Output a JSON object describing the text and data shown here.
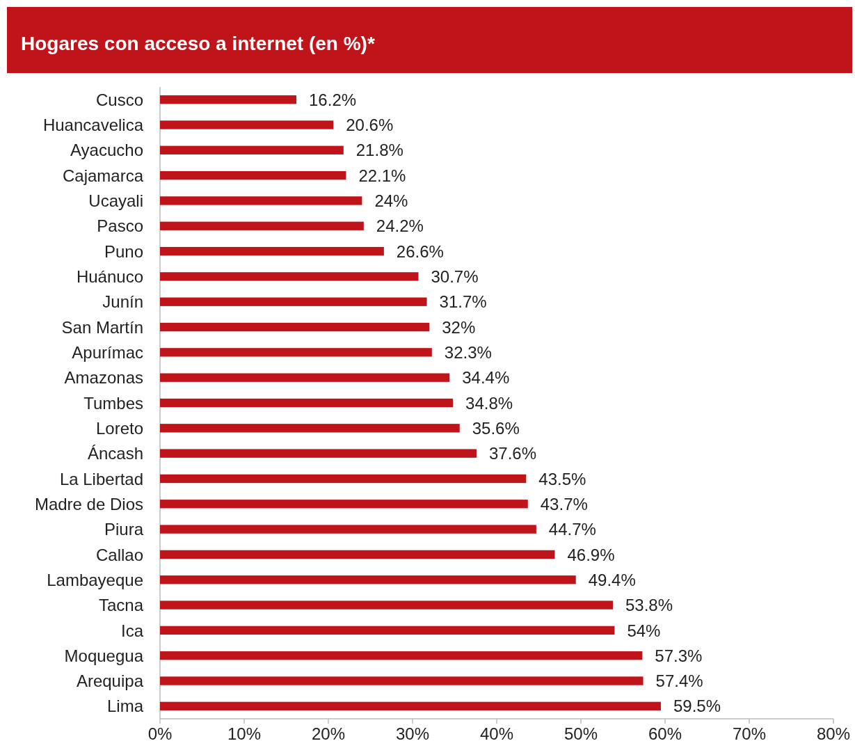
{
  "chart_data": {
    "type": "bar",
    "orientation": "horizontal",
    "title": "Hogares con acceso a internet (en %)*",
    "categories": [
      "Cusco",
      "Huancavelica",
      "Ayacucho",
      "Cajamarca",
      "Ucayali",
      "Pasco",
      "Puno",
      "Huánuco",
      "Junín",
      "San Martín",
      "Apurímac",
      "Amazonas",
      "Tumbes",
      "Loreto",
      "Áncash",
      "La Libertad",
      "Madre de Dios",
      "Piura",
      "Callao",
      "Lambayeque",
      "Tacna",
      "Ica",
      "Moquegua",
      "Arequipa",
      "Lima"
    ],
    "values": [
      16.2,
      20.6,
      21.8,
      22.1,
      24,
      24.2,
      26.6,
      30.7,
      31.7,
      32,
      32.3,
      34.4,
      34.8,
      35.6,
      37.6,
      43.5,
      43.7,
      44.7,
      46.9,
      49.4,
      53.8,
      54,
      57.3,
      57.4,
      59.5
    ],
    "color": "#c0141b",
    "xlim": [
      0,
      80
    ],
    "xticks": [
      {
        "value": 0,
        "label": "0%"
      },
      {
        "value": 10,
        "label": "10%"
      },
      {
        "value": 20,
        "label": "20%"
      },
      {
        "value": 30,
        "label": "30%"
      },
      {
        "value": 40,
        "label": "40%"
      },
      {
        "value": 50,
        "label": "50%"
      },
      {
        "value": 60,
        "label": "60%"
      },
      {
        "value": 70,
        "label": "70%"
      },
      {
        "value": 80,
        "label": "80%"
      }
    ],
    "value_labels": [
      "16.2%",
      "20.6%",
      "21.8%",
      "22.1%",
      "24%",
      "24.2%",
      "26.6%",
      "30.7%",
      "31.7%",
      "32%",
      "32.3%",
      "34.4%",
      "34.8%",
      "35.6%",
      "37.6%",
      "43.5%",
      "43.7%",
      "44.7%",
      "46.9%",
      "49.4%",
      "53.8%",
      "54%",
      "57.3%",
      "57.4%",
      "59.5%"
    ],
    "grid": false
  }
}
